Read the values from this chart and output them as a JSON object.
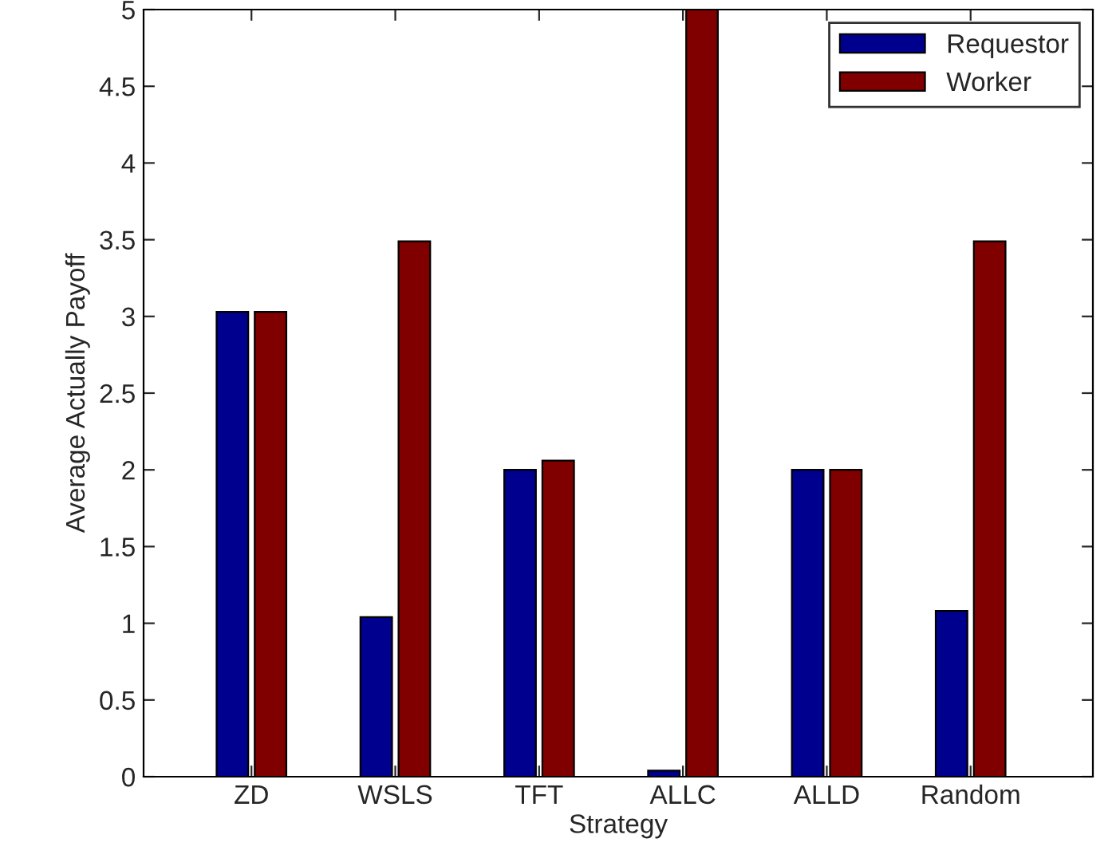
{
  "chart_data": {
    "type": "bar",
    "xlabel": "Strategy",
    "ylabel": "Average Actually Payoff",
    "categories": [
      "ZD",
      "WSLS",
      "TFT",
      "ALLC",
      "ALLD",
      "Random"
    ],
    "series": [
      {
        "name": "Requestor",
        "color": "#00008f",
        "values": [
          3.03,
          1.04,
          2.0,
          0.04,
          2.0,
          1.08
        ]
      },
      {
        "name": "Worker",
        "color": "#800000",
        "values": [
          3.03,
          3.49,
          2.06,
          5.0,
          2.0,
          3.49
        ]
      }
    ],
    "ylim": [
      0,
      5
    ],
    "yticks": [
      0,
      0.5,
      1,
      1.5,
      2,
      2.5,
      3,
      3.5,
      4,
      4.5,
      5
    ],
    "grid": false,
    "legend": "top right"
  }
}
